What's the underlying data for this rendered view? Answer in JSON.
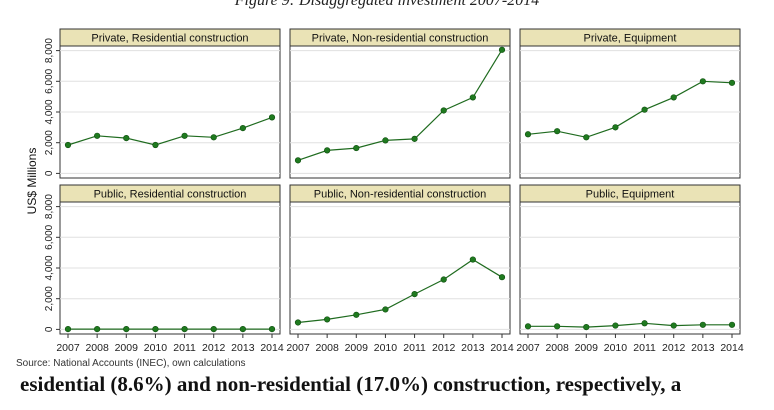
{
  "figure": {
    "caption": "Figure 9: Disaggregated investment 2007-2014",
    "ylabel": "US$ Millions",
    "source": "Source: National Accounts (INEC), own calculations",
    "body_text": "esidential (8.6%) and non-residential (17.0%) construction, respectively, a"
  },
  "colors": {
    "line": "#1f6b1f",
    "marker": "#1f7a1f",
    "strip": "#eae3b6",
    "grid": "#e0e0e0",
    "frame": "#333333"
  },
  "chart_data": [
    {
      "type": "line",
      "title": "Private, Residential construction",
      "x": [
        2007,
        2008,
        2009,
        2010,
        2011,
        2012,
        2013,
        2014
      ],
      "values": [
        1850,
        2450,
        2300,
        1850,
        2450,
        2350,
        2950,
        3650
      ],
      "ylim": [
        0,
        8000
      ]
    },
    {
      "type": "line",
      "title": "Private, Non-residential construction",
      "x": [
        2007,
        2008,
        2009,
        2010,
        2011,
        2012,
        2013,
        2014
      ],
      "values": [
        850,
        1500,
        1650,
        2150,
        2250,
        4100,
        4950,
        8050
      ],
      "ylim": [
        0,
        8000
      ]
    },
    {
      "type": "line",
      "title": "Private, Equipment",
      "x": [
        2007,
        2008,
        2009,
        2010,
        2011,
        2012,
        2013,
        2014
      ],
      "values": [
        2550,
        2750,
        2350,
        3000,
        4150,
        4950,
        6000,
        5900
      ],
      "ylim": [
        0,
        8000
      ]
    },
    {
      "type": "line",
      "title": "Public, Residential construction",
      "x": [
        2007,
        2008,
        2009,
        2010,
        2011,
        2012,
        2013,
        2014
      ],
      "values": [
        20,
        20,
        20,
        20,
        20,
        20,
        20,
        20
      ],
      "ylim": [
        0,
        8000
      ]
    },
    {
      "type": "line",
      "title": "Public, Non-residential construction",
      "x": [
        2007,
        2008,
        2009,
        2010,
        2011,
        2012,
        2013,
        2014
      ],
      "values": [
        450,
        650,
        950,
        1300,
        2300,
        3250,
        4550,
        3400
      ],
      "ylim": [
        0,
        8000
      ]
    },
    {
      "type": "line",
      "title": "Public, Equipment",
      "x": [
        2007,
        2008,
        2009,
        2010,
        2011,
        2012,
        2013,
        2014
      ],
      "values": [
        200,
        200,
        150,
        250,
        400,
        250,
        300,
        300
      ],
      "ylim": [
        0,
        8000
      ]
    }
  ],
  "axes": {
    "x_ticks": [
      "2007",
      "2008",
      "2009",
      "2010",
      "2011",
      "2012",
      "2013",
      "2014"
    ],
    "y_ticks": [
      "0",
      "2,000",
      "4,000",
      "6,000",
      "8,000"
    ],
    "y_tick_values": [
      0,
      2000,
      4000,
      6000,
      8000
    ]
  }
}
